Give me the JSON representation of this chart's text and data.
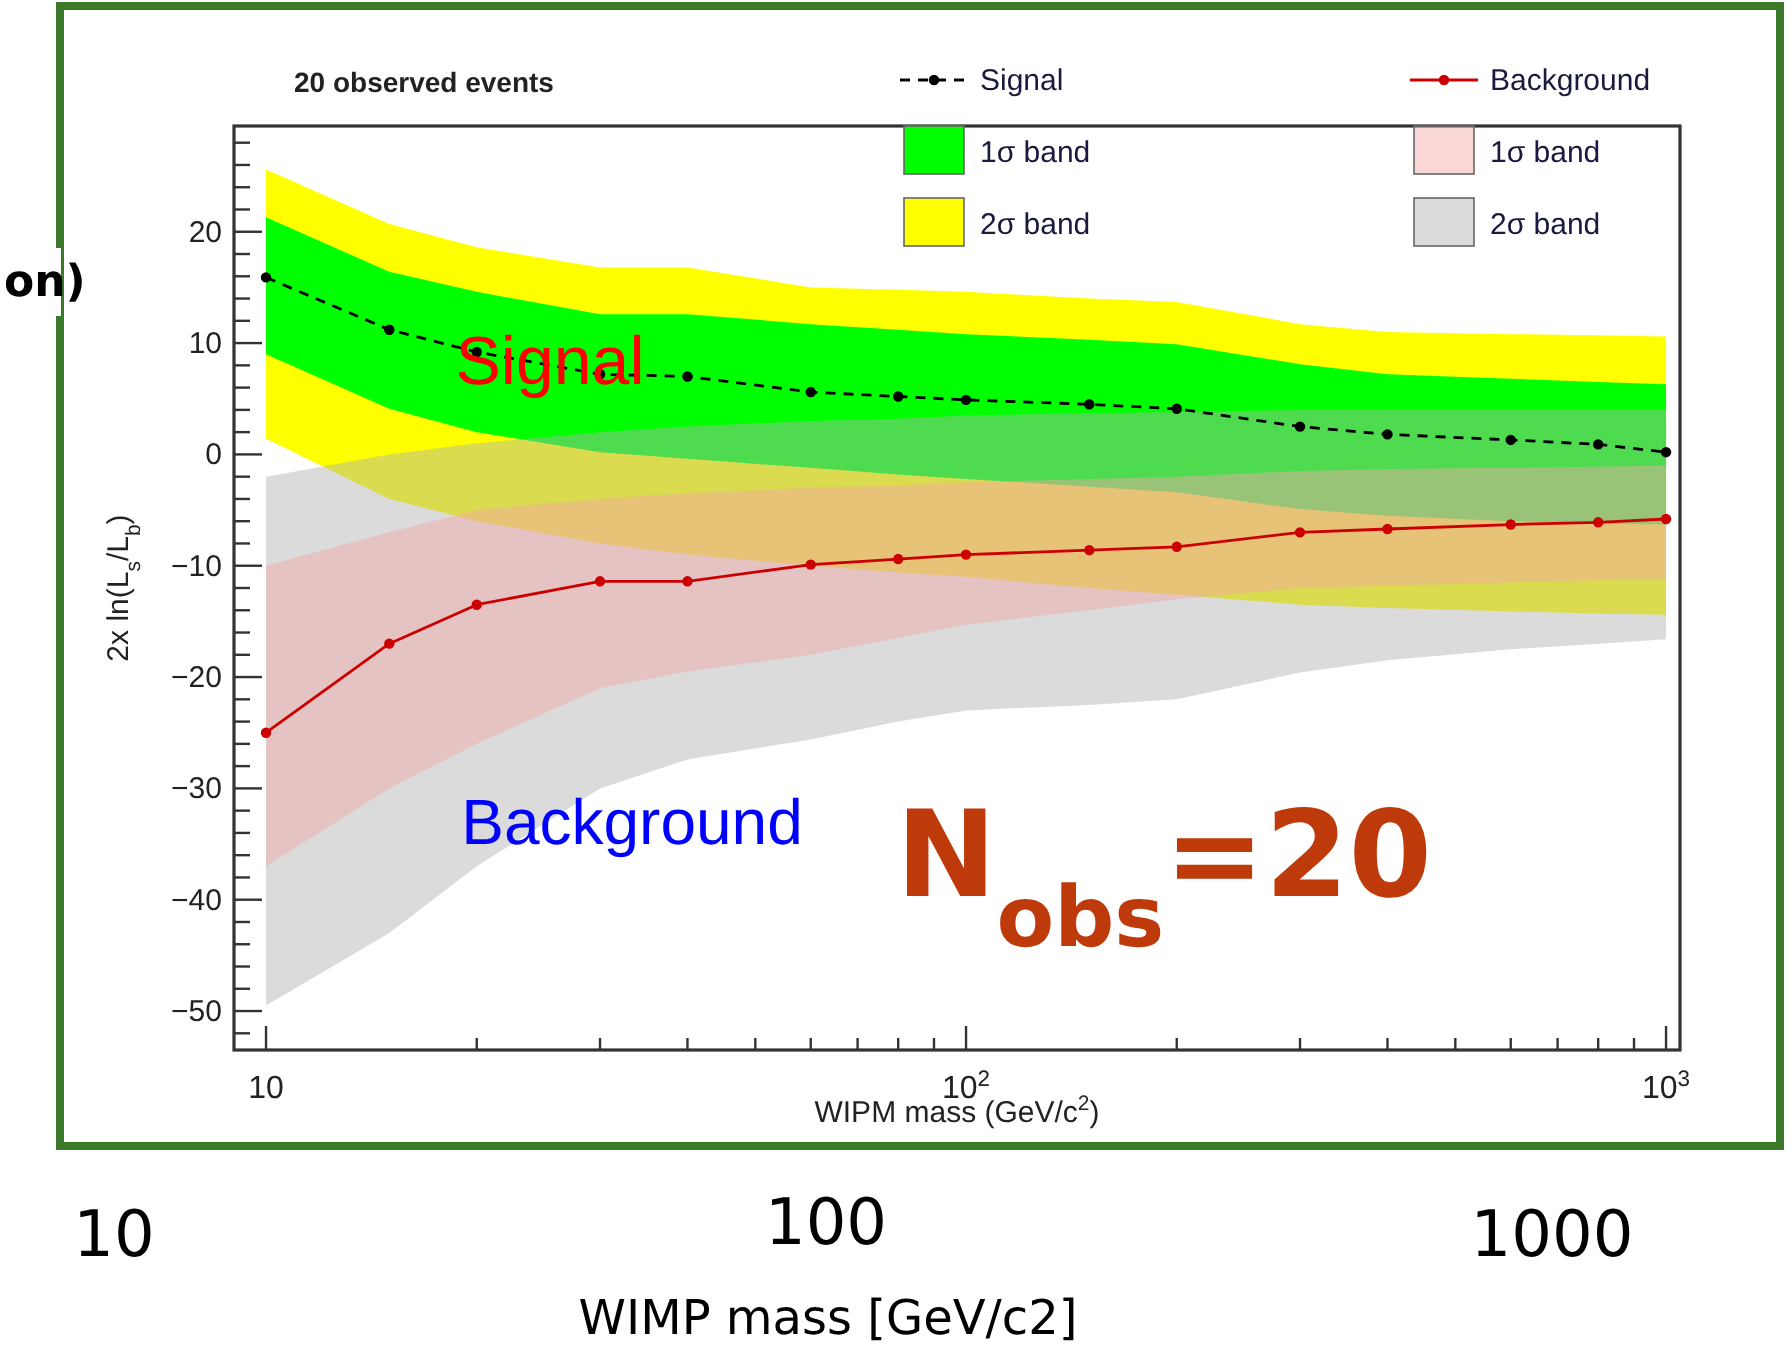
{
  "chart_data": {
    "type": "line",
    "title": "20 observed events",
    "xlabel": "WIPM mass (GeV/c$^{2}$)",
    "ylabel": "2x ln(L$_{s}$/L$_{b}$)",
    "x": [
      10,
      15,
      20,
      30,
      40,
      60,
      80,
      100,
      150,
      200,
      300,
      400,
      600,
      800,
      1000
    ],
    "series": [
      {
        "name": "Signal",
        "color": "#000000",
        "line_style": "dashed",
        "marker": "circle",
        "values": [
          15.9,
          11.2,
          9.2,
          7.2,
          7.0,
          5.6,
          5.2,
          4.9,
          4.5,
          4.1,
          2.5,
          1.8,
          1.3,
          0.9,
          0.2
        ]
      },
      {
        "name": "1σ band",
        "color": "#00ff00",
        "values": [
          null,
          null,
          null,
          null,
          null,
          null,
          null,
          null,
          null,
          null,
          null,
          null,
          null,
          null,
          null
        ],
        "lower": [
          9.0,
          4.1,
          2.0,
          0.2,
          -0.4,
          -1.2,
          -1.8,
          -2.2,
          -2.9,
          -3.4,
          -4.9,
          -5.5,
          -6.0,
          -6.2,
          -6.3
        ],
        "upper": [
          21.3,
          16.4,
          14.6,
          12.6,
          12.6,
          11.7,
          11.2,
          10.8,
          10.3,
          9.9,
          8.1,
          7.2,
          6.8,
          6.5,
          6.3
        ]
      },
      {
        "name": "2σ band",
        "color": "#ffff00",
        "values": [
          null,
          null,
          null,
          null,
          null,
          null,
          null,
          null,
          null,
          null,
          null,
          null,
          null,
          null,
          null
        ],
        "lower": [
          1.4,
          -4.0,
          -6.0,
          -8.0,
          -9.0,
          -10.0,
          -10.6,
          -11.0,
          -12.0,
          -12.6,
          -13.5,
          -13.8,
          -14.1,
          -14.3,
          -14.4
        ],
        "upper": [
          25.6,
          20.7,
          18.6,
          16.8,
          16.8,
          15.0,
          14.8,
          14.6,
          14.0,
          13.7,
          11.7,
          11.0,
          10.8,
          10.7,
          10.6
        ]
      },
      {
        "name": "Background",
        "color": "#cc0000",
        "line_style": "solid",
        "marker": "circle",
        "values": [
          -25.0,
          -17.0,
          -13.5,
          -11.4,
          -11.4,
          -9.9,
          -9.4,
          -9.0,
          -8.6,
          -8.3,
          -7.0,
          -6.7,
          -6.3,
          -6.1,
          -5.8
        ]
      },
      {
        "name": "1σ band",
        "color": "#f4a6a6",
        "values": [
          null,
          null,
          null,
          null,
          null,
          null,
          null,
          null,
          null,
          null,
          null,
          null,
          null,
          null,
          null
        ],
        "lower": [
          -37,
          -30,
          -26,
          -21,
          -19.5,
          -18,
          -16.5,
          -15.3,
          -14,
          -13,
          -12,
          -11.8,
          -11.5,
          -11.3,
          -11.2
        ],
        "upper": [
          -10,
          -7,
          -5,
          -4,
          -3.5,
          -3,
          -2.8,
          -2.5,
          -2.2,
          -2,
          -1.5,
          -1.3,
          -1.2,
          -1.1,
          -1
        ]
      },
      {
        "name": "2σ band",
        "color": "#b0b0b0",
        "values": [
          null,
          null,
          null,
          null,
          null,
          null,
          null,
          null,
          null,
          null,
          null,
          null,
          null,
          null,
          null
        ],
        "lower": [
          -49.5,
          -43,
          -37,
          -30,
          -27.4,
          -25.6,
          -24,
          -23,
          -22.5,
          -22,
          -19.6,
          -18.5,
          -17.5,
          -17,
          -16.6
        ],
        "upper": [
          -2,
          0,
          1,
          2,
          2.5,
          3,
          3.2,
          3.5,
          3.7,
          3.8,
          4,
          4,
          4,
          4,
          4
        ]
      }
    ],
    "xlim": [
      9,
      1047
    ],
    "ylim": [
      -53.5,
      29.5
    ],
    "log": "x",
    "xticks": [
      10,
      {
        "value": 20,
        "label": null
      },
      {
        "value": 30,
        "label": null
      },
      {
        "value": 40,
        "label": null
      },
      {
        "value": 50,
        "label": null
      },
      {
        "value": 60,
        "label": null
      },
      {
        "value": 70,
        "label": null
      },
      {
        "value": 80,
        "label": null
      },
      {
        "value": 90,
        "label": null
      },
      {
        "value": 100,
        "label": "10$^{2}$"
      },
      {
        "value": 200,
        "label": null
      },
      {
        "value": 300,
        "label": null
      },
      {
        "value": 400,
        "label": null
      },
      {
        "value": 500,
        "label": null
      },
      {
        "value": 600,
        "label": null
      },
      {
        "value": 700,
        "label": null
      },
      {
        "value": 800,
        "label": null
      },
      {
        "value": 900,
        "label": null
      },
      {
        "value": 1000,
        "label": "10$^{3}$"
      }
    ],
    "yticks": [
      -50,
      -40,
      -30,
      -20,
      -10,
      0,
      10,
      20,
      {
        "value": -52,
        "label": null
      },
      {
        "value": -48,
        "label": null
      },
      {
        "value": -46,
        "label": null
      },
      {
        "value": -44,
        "label": null
      },
      {
        "value": -42,
        "label": null
      },
      {
        "value": -38,
        "label": null
      },
      {
        "value": -36,
        "label": null
      },
      {
        "value": -34,
        "label": null
      },
      {
        "value": -32,
        "label": null
      },
      {
        "value": -28,
        "label": null
      },
      {
        "value": -26,
        "label": null
      },
      {
        "value": -24,
        "label": null
      },
      {
        "value": -22,
        "label": null
      },
      {
        "value": -18,
        "label": null
      },
      {
        "value": -16,
        "label": null
      },
      {
        "value": -14,
        "label": null
      },
      {
        "value": -12,
        "label": null
      },
      {
        "value": -8,
        "label": null
      },
      {
        "value": -6,
        "label": null
      },
      {
        "value": -4,
        "label": null
      },
      {
        "value": -2,
        "label": null
      },
      {
        "value": 2,
        "label": null
      },
      {
        "value": 4,
        "label": null
      },
      {
        "value": 6,
        "label": null
      },
      {
        "value": 8,
        "label": null
      },
      {
        "value": 12,
        "label": null
      },
      {
        "value": 14,
        "label": null
      },
      {
        "value": 16,
        "label": null
      },
      {
        "value": 18,
        "label": null
      },
      {
        "value": 22,
        "label": null
      },
      {
        "value": 24,
        "label": null
      },
      {
        "value": 26,
        "label": null
      },
      {
        "value": 28,
        "label": null
      }
    ],
    "legend": "top right",
    "annotations": [
      "Signal",
      "Background",
      "N$_{obs}$=20",
      "on)",
      "10",
      "100",
      "1000",
      "WIMP mass [GeV/c2]"
    ]
  }
}
